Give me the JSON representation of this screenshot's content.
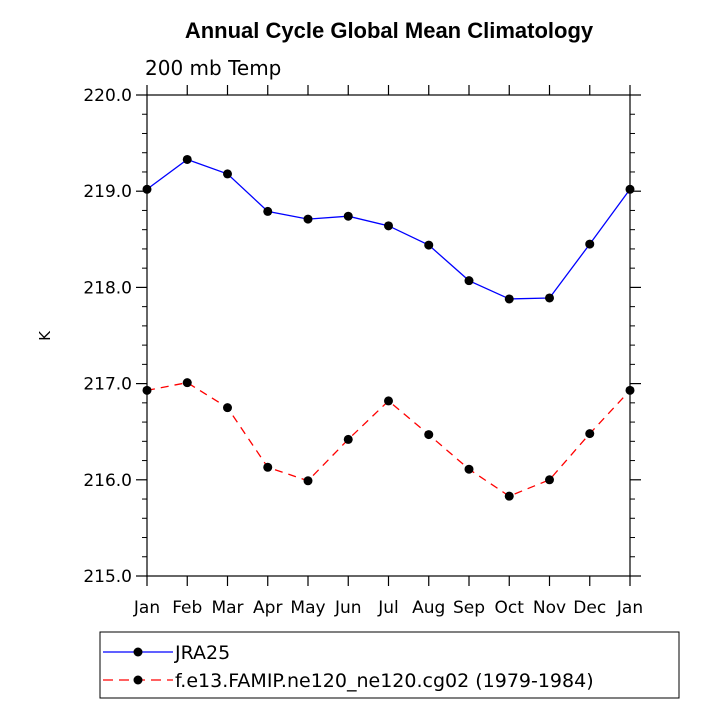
{
  "chart_data": {
    "type": "line",
    "title": "Annual Cycle Global Mean Climatology",
    "subtitle": "200 mb Temp",
    "xlabel": "",
    "ylabel": "K",
    "categories": [
      "Jan",
      "Feb",
      "Mar",
      "Apr",
      "May",
      "Jun",
      "Jul",
      "Aug",
      "Sep",
      "Oct",
      "Nov",
      "Dec",
      "Jan"
    ],
    "ylim": [
      215.0,
      220.0
    ],
    "yticks": [
      "215.0",
      "216.0",
      "217.0",
      "218.0",
      "219.0",
      "220.0"
    ],
    "ytick_values": [
      215.0,
      216.0,
      217.0,
      218.0,
      219.0,
      220.0
    ],
    "series": [
      {
        "name": "JRA25",
        "color": "#0000ff",
        "dash": "solid",
        "values": [
          219.02,
          219.33,
          219.18,
          218.79,
          218.71,
          218.74,
          218.64,
          218.44,
          218.07,
          217.88,
          217.89,
          218.45,
          219.02
        ]
      },
      {
        "name": "f.e13.FAMIP.ne120_ne120.cg02 (1979-1984)",
        "color": "#ff0000",
        "dash": "dashed",
        "values": [
          216.93,
          217.01,
          216.75,
          216.13,
          215.99,
          216.42,
          216.82,
          216.47,
          216.11,
          215.83,
          216.0,
          216.48,
          216.93
        ]
      }
    ],
    "legend_position": "bottom-left"
  }
}
